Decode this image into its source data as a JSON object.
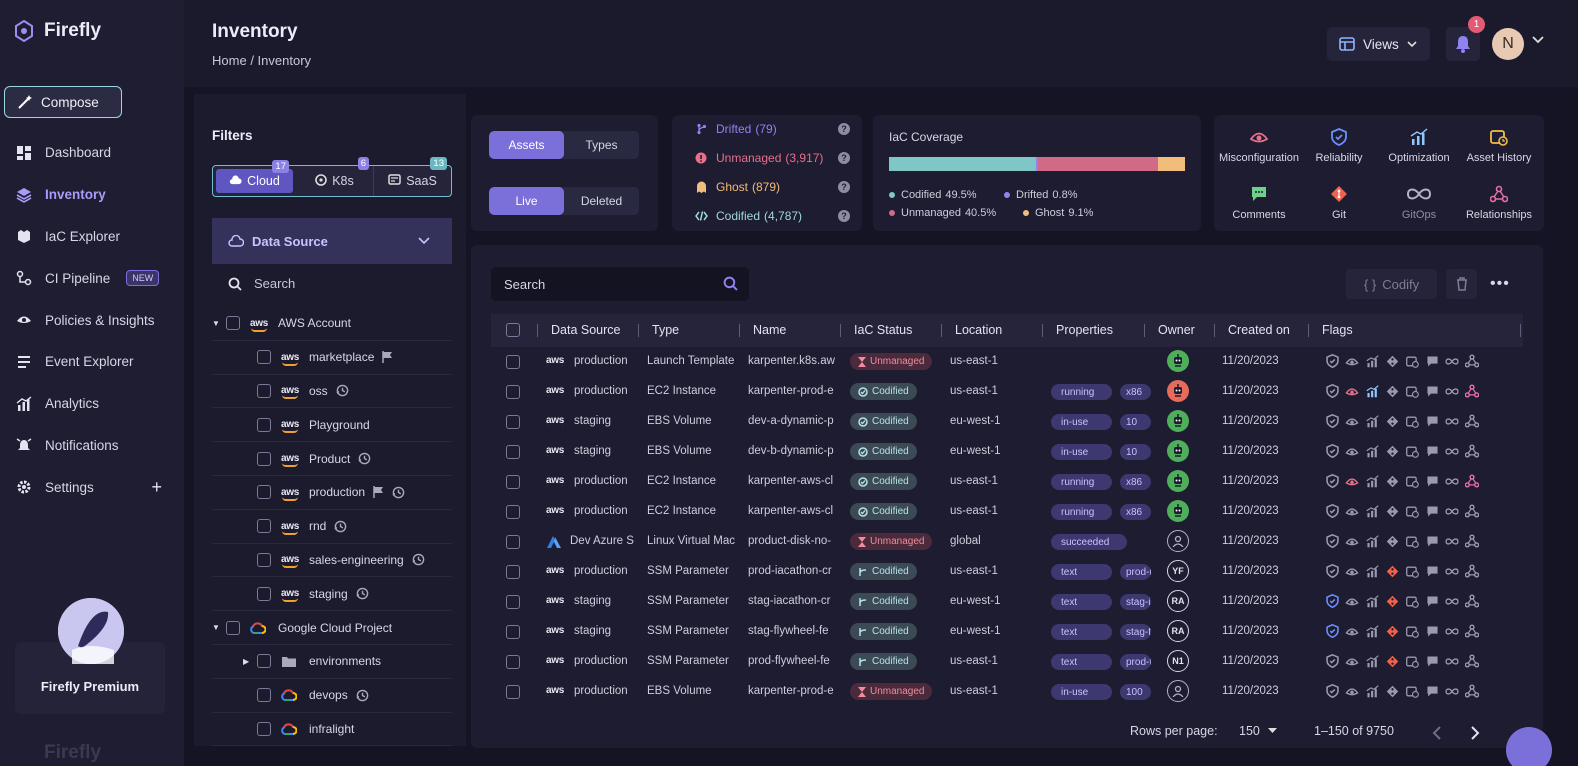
{
  "app": {
    "name": "Firefly"
  },
  "sidebar": {
    "compose": "Compose",
    "items": [
      {
        "label": "Dashboard",
        "icon": "dashboard-icon"
      },
      {
        "label": "Inventory",
        "icon": "layers-icon",
        "active": true
      },
      {
        "label": "IaC Explorer",
        "icon": "iac-explorer-icon"
      },
      {
        "label": "CI Pipeline",
        "icon": "pipeline-icon",
        "badge": "NEW"
      },
      {
        "label": "Policies & Insights",
        "icon": "policies-icon"
      },
      {
        "label": "Event Explorer",
        "icon": "events-icon"
      },
      {
        "label": "Analytics",
        "icon": "analytics-icon"
      },
      {
        "label": "Notifications",
        "icon": "notifications-icon"
      },
      {
        "label": "Settings",
        "icon": "gear-icon"
      }
    ],
    "premium": "Firefly Premium"
  },
  "header": {
    "title": "Inventory",
    "breadcrumb": [
      "Home",
      "Inventory"
    ],
    "views": "Views",
    "notification_count": "1",
    "user_initial": "N"
  },
  "filters": {
    "title": "Filters",
    "provider_tabs": [
      {
        "label": "Cloud",
        "count": "17"
      },
      {
        "label": "K8s",
        "count": "6"
      },
      {
        "label": "SaaS",
        "count": "13"
      }
    ],
    "data_source": "Data Source",
    "search_placeholder": "Search",
    "tree": [
      {
        "label": "AWS Account",
        "level": 0,
        "type": "group-aws"
      },
      {
        "label": "marketplace",
        "level": 1,
        "type": "aws",
        "extra": "flag"
      },
      {
        "label": "oss",
        "level": 1,
        "type": "aws",
        "extra": "clock"
      },
      {
        "label": "Playground",
        "level": 1,
        "type": "aws",
        "extra": ""
      },
      {
        "label": "Product",
        "level": 1,
        "type": "aws",
        "extra": "clock"
      },
      {
        "label": "production",
        "level": 1,
        "type": "aws",
        "extra": "flag-clock"
      },
      {
        "label": "rnd",
        "level": 1,
        "type": "aws",
        "extra": "clock"
      },
      {
        "label": "sales-engineering",
        "level": 1,
        "type": "aws",
        "extra": "clock"
      },
      {
        "label": "staging",
        "level": 1,
        "type": "aws",
        "extra": "clock"
      },
      {
        "label": "Google Cloud Project",
        "level": 0,
        "type": "group-gcp"
      },
      {
        "label": "environments",
        "level": 1,
        "type": "folder",
        "extra": ""
      },
      {
        "label": "devops",
        "level": 1,
        "type": "gcp",
        "extra": "clock"
      },
      {
        "label": "infralight",
        "level": 1,
        "type": "gcp",
        "extra": ""
      }
    ]
  },
  "toggles": {
    "asset_type": [
      "Assets",
      "Types"
    ],
    "state": [
      "Live",
      "Deleted"
    ]
  },
  "status_summary": [
    {
      "label": "Drifted",
      "count": "(79)",
      "color": "#8f83f2"
    },
    {
      "label": "Unmanaged",
      "count": "(3,917)",
      "color": "#e8708a"
    },
    {
      "label": "Ghost",
      "count": "(879)",
      "color": "#f2bd7c"
    },
    {
      "label": "Codified",
      "count": "(4,787)",
      "color": "#9fd8df"
    }
  ],
  "iac_coverage": {
    "title": "IaC Coverage",
    "segments": [
      {
        "label": "Codified",
        "value": 49.5,
        "display": "49.5%",
        "color": "#7fc6c6"
      },
      {
        "label": "Drifted",
        "value": 0.8,
        "display": "0.8%",
        "color": "#8f83f2"
      },
      {
        "label": "Unmanaged",
        "value": 40.5,
        "display": "40.5%",
        "color": "#d06a86"
      },
      {
        "label": "Ghost",
        "value": 9.1,
        "display": "9.1%",
        "color": "#f2bd7c"
      }
    ]
  },
  "features": [
    {
      "label": "Misconfiguration",
      "icon": "misconfiguration-icon"
    },
    {
      "label": "Reliability",
      "icon": "shield-icon"
    },
    {
      "label": "Optimization",
      "icon": "optimization-icon"
    },
    {
      "label": "Asset History",
      "icon": "calendar-icon"
    },
    {
      "label": "Comments",
      "icon": "comment-icon"
    },
    {
      "label": "Git",
      "icon": "git-icon"
    },
    {
      "label": "GitOps",
      "icon": "infinity-icon"
    },
    {
      "label": "Relationships",
      "icon": "relationships-icon"
    }
  ],
  "table": {
    "search_placeholder": "Search",
    "codify_label": "Codify",
    "columns": [
      "Data Source",
      "Type",
      "Name",
      "IaC Status",
      "Location",
      "Properties",
      "Owner",
      "Created on",
      "Flags"
    ],
    "rows": [
      {
        "logo": "aws",
        "source": "production",
        "type": "Launch Template",
        "name": "karpenter.k8s.aw",
        "status": "Unmanaged",
        "location": "us-east-1",
        "props": [],
        "owner": "bot-green",
        "created": "11/20/2023",
        "flags": "00000000"
      },
      {
        "logo": "aws",
        "source": "production",
        "type": "EC2 Instance",
        "name": "karpenter-prod-e",
        "status": "Codified",
        "location": "us-east-1",
        "props": [
          "running",
          "x86"
        ],
        "owner": "bot-red",
        "created": "11/20/2023",
        "flags": "01100001"
      },
      {
        "logo": "aws",
        "source": "staging",
        "type": "EBS Volume",
        "name": "dev-a-dynamic-p",
        "status": "Codified",
        "location": "eu-west-1",
        "props": [
          "in-use",
          "10"
        ],
        "owner": "bot-green",
        "created": "11/20/2023",
        "flags": "00000000"
      },
      {
        "logo": "aws",
        "source": "staging",
        "type": "EBS Volume",
        "name": "dev-b-dynamic-p",
        "status": "Codified",
        "location": "eu-west-1",
        "props": [
          "in-use",
          "10"
        ],
        "owner": "bot-green",
        "created": "11/20/2023",
        "flags": "00000000"
      },
      {
        "logo": "aws",
        "source": "production",
        "type": "EC2 Instance",
        "name": "karpenter-aws-cl",
        "status": "Codified",
        "location": "us-east-1",
        "props": [
          "running",
          "x86"
        ],
        "owner": "bot-green",
        "created": "11/20/2023",
        "flags": "01000001"
      },
      {
        "logo": "aws",
        "source": "production",
        "type": "EC2 Instance",
        "name": "karpenter-aws-cl",
        "status": "Codified",
        "location": "us-east-1",
        "props": [
          "running",
          "x86"
        ],
        "owner": "bot-green",
        "created": "11/20/2023",
        "flags": "00000000"
      },
      {
        "logo": "azure",
        "source": "Dev Azure S",
        "type": "Linux Virtual Mac",
        "name": "product-disk-no-",
        "status": "Unmanaged",
        "location": "global",
        "props": [
          "succeeded"
        ],
        "owner": "user",
        "created": "11/20/2023",
        "flags": "00000000"
      },
      {
        "logo": "aws",
        "source": "production",
        "type": "SSM Parameter",
        "name": "prod-iacathon-cr",
        "status": "Codified-git",
        "location": "us-east-1",
        "props": [
          "text",
          "prod-ia"
        ],
        "owner": "YF",
        "created": "11/20/2023",
        "flags": "00010000"
      },
      {
        "logo": "aws",
        "source": "staging",
        "type": "SSM Parameter",
        "name": "stag-iacathon-cr",
        "status": "Codified-git",
        "location": "eu-west-1",
        "props": [
          "text",
          "stag-ia"
        ],
        "owner": "RA",
        "created": "11/20/2023",
        "flags": "10010000"
      },
      {
        "logo": "aws",
        "source": "staging",
        "type": "SSM Parameter",
        "name": "stag-flywheel-fe",
        "status": "Codified-git",
        "location": "eu-west-1",
        "props": [
          "text",
          "stag-fl"
        ],
        "owner": "RA",
        "created": "11/20/2023",
        "flags": "10010000"
      },
      {
        "logo": "aws",
        "source": "production",
        "type": "SSM Parameter",
        "name": "prod-flywheel-fe",
        "status": "Codified-git",
        "location": "us-east-1",
        "props": [
          "text",
          "prod-fl"
        ],
        "owner": "N1",
        "created": "11/20/2023",
        "flags": "00010000"
      },
      {
        "logo": "aws",
        "source": "production",
        "type": "EBS Volume",
        "name": "karpenter-prod-e",
        "status": "Unmanaged",
        "location": "us-east-1",
        "props": [
          "in-use",
          "100"
        ],
        "owner": "user",
        "created": "11/20/2023",
        "flags": "00000000"
      }
    ]
  },
  "pagination": {
    "rows_label": "Rows per page:",
    "rows_value": "150",
    "range": "1–150 of 9750"
  },
  "colors": {
    "accent": "#7b70da",
    "bg": "#1b1a2c",
    "codified": "#b8e2e8",
    "unmanaged": "#f08ca0"
  }
}
